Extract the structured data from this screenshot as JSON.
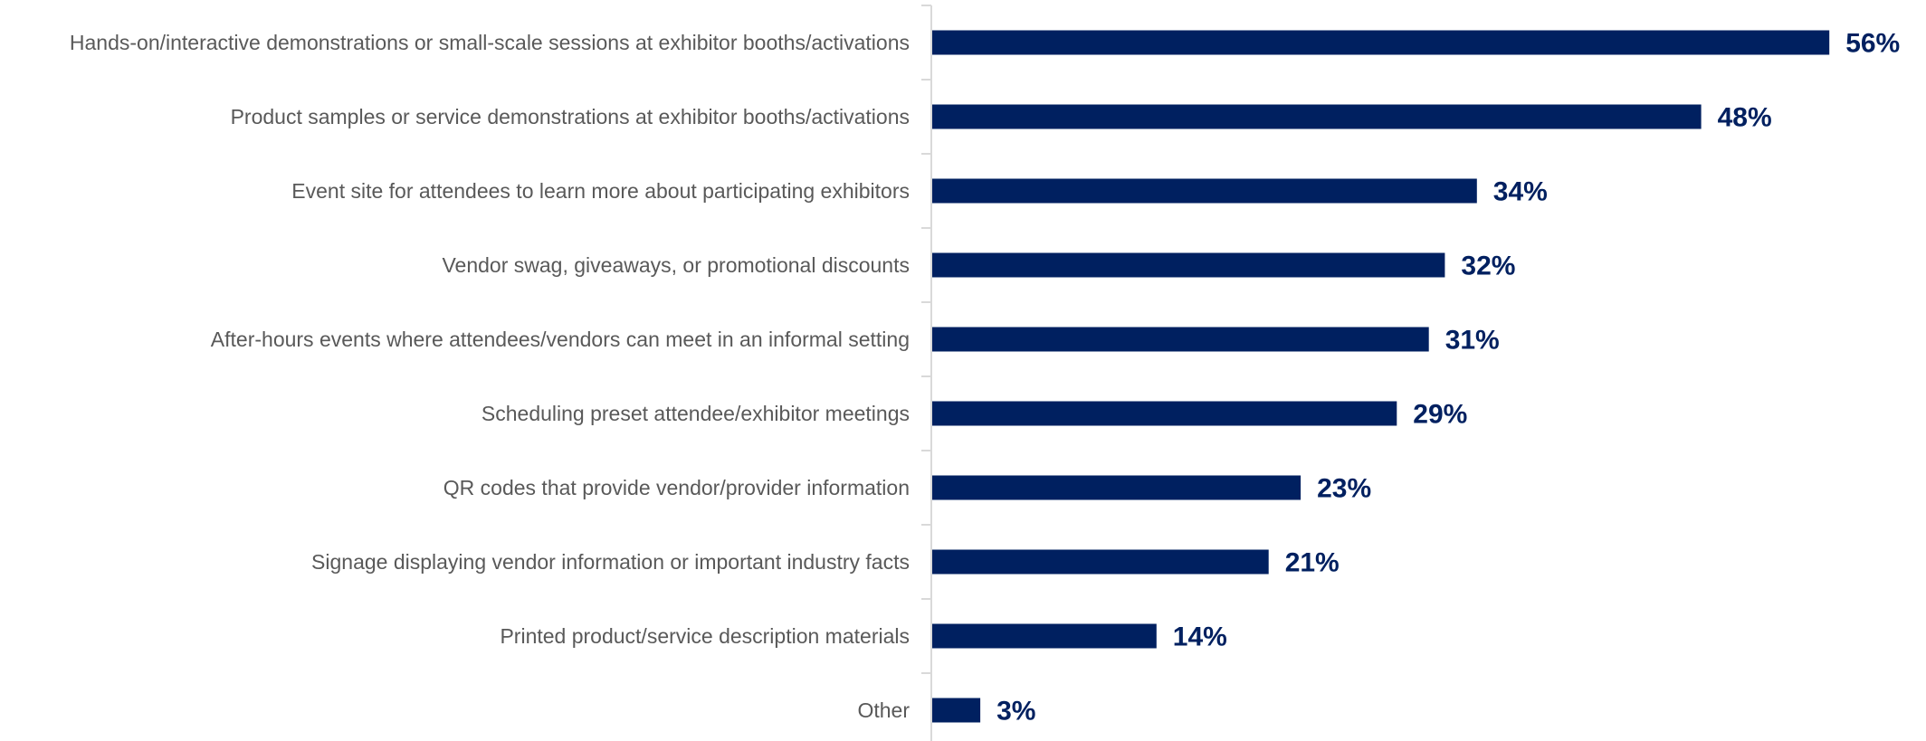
{
  "chart_data": {
    "type": "bar",
    "orientation": "horizontal",
    "title": "",
    "xlabel": "",
    "ylabel": "",
    "xlim": [
      0,
      56
    ],
    "grid": false,
    "legend": "none",
    "value_format": "percent",
    "bar_color": "#002060",
    "label_color": "#002060",
    "categories": [
      "Hands-on/interactive demonstrations or small-scale sessions at exhibitor booths/activations",
      "Product samples or service demonstrations at exhibitor booths/activations",
      "Event site for attendees to learn more about participating exhibitors",
      "Vendor swag, giveaways, or promotional discounts",
      "After-hours events where attendees/vendors can meet in an informal setting",
      "Scheduling preset attendee/exhibitor meetings",
      "QR codes that provide vendor/provider information",
      "Signage displaying vendor information or important industry facts",
      "Printed product/service description materials",
      "Other"
    ],
    "values": [
      56,
      48,
      34,
      32,
      31,
      29,
      23,
      21,
      14,
      3
    ],
    "data_labels": [
      "56%",
      "48%",
      "34%",
      "32%",
      "31%",
      "29%",
      "23%",
      "21%",
      "14%",
      "3%"
    ]
  }
}
